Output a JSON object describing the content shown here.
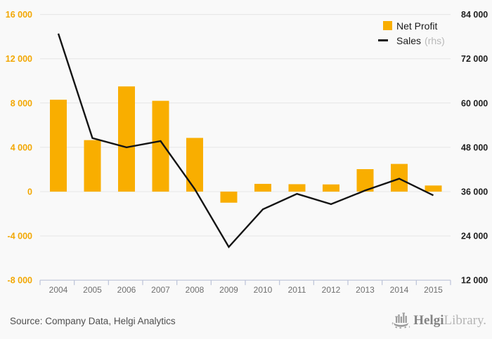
{
  "legend": {
    "items": [
      {
        "label": "Net Profit",
        "swatch": "square",
        "color": "#F9AE00"
      },
      {
        "label": "Sales",
        "suffix": "(rhs)",
        "swatch": "line",
        "color": "#141414"
      }
    ]
  },
  "chart_data": {
    "type": "bar",
    "title": "",
    "categories": [
      "2004",
      "2005",
      "2006",
      "2007",
      "2008",
      "2009",
      "2010",
      "2011",
      "2012",
      "2013",
      "2014",
      "2015"
    ],
    "series": [
      {
        "name": "Net Profit",
        "type": "bar",
        "axis": "left",
        "values": [
          8300,
          4650,
          9500,
          8200,
          4850,
          -1000,
          700,
          670,
          650,
          2030,
          2500,
          550
        ]
      },
      {
        "name": "Sales",
        "type": "line",
        "axis": "right",
        "values": [
          78800,
          50500,
          48000,
          49700,
          36700,
          21000,
          31200,
          35400,
          32600,
          36300,
          39500,
          35000
        ]
      }
    ],
    "left_axis": {
      "min": -8000,
      "max": 16000,
      "step": 4000,
      "tick_labels": [
        "16 000",
        "12 000",
        "8 000",
        "4 000",
        "0",
        "-4 000",
        "-8 000"
      ]
    },
    "right_axis": {
      "min": 12000,
      "max": 84000,
      "step": 12000,
      "tick_labels": [
        "84 000",
        "72 000",
        "60 000",
        "48 000",
        "36 000",
        "24 000",
        "12 000"
      ]
    },
    "grid": "horizontal",
    "legend_position": "top-right"
  },
  "footer": {
    "source": "Source: Company Data, Helgi Analytics",
    "logo": {
      "brand_bold": "Helgi",
      "brand_light": "Library."
    }
  },
  "colors": {
    "bar": "#F9AE00",
    "line": "#141414",
    "left_label": "#F2A702",
    "right_label": "#1f1f1f",
    "year_label": "#6f6f6f",
    "grid": "#e6e6e6",
    "axis_line": "#bcc3d8",
    "background": "#f9f9f9"
  }
}
